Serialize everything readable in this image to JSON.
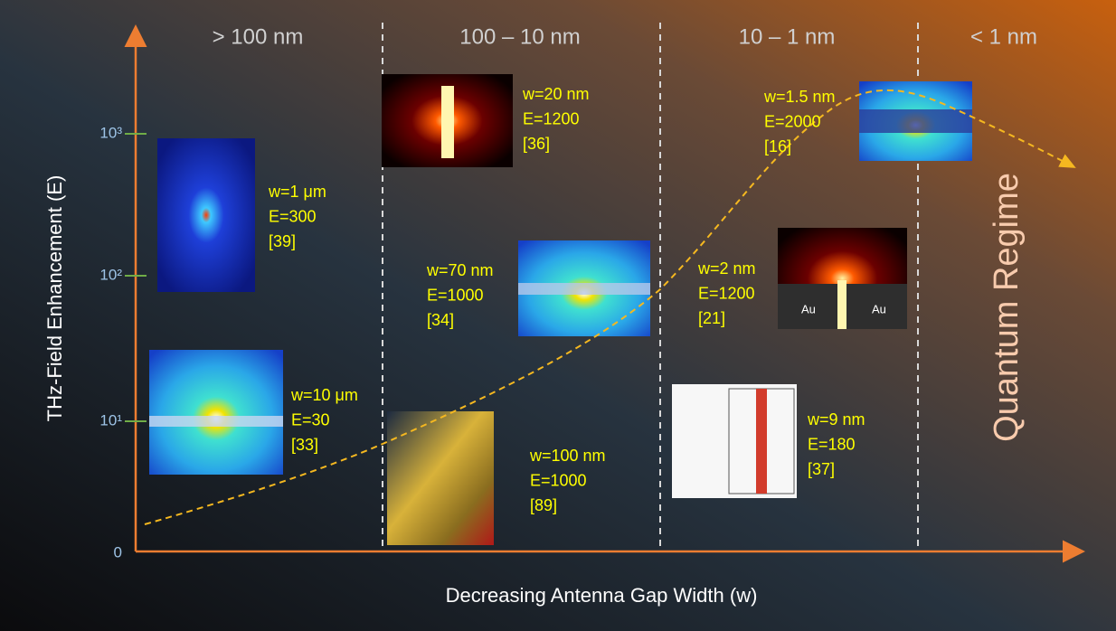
{
  "axes": {
    "y_label": "THz-Field Enhancement (E)",
    "x_label": "Decreasing Antenna Gap Width (w)",
    "y_ticks": [
      "0",
      "10¹",
      "10²",
      "10³"
    ]
  },
  "regions": [
    "> 100 nm",
    "100 – 10 nm",
    "10 – 1 nm",
    "< 1 nm"
  ],
  "side_label": "Quantum Regime",
  "examples": [
    {
      "lines": [
        "w=1 μm",
        "E=300",
        "[39]"
      ]
    },
    {
      "lines": [
        "w=10 μm",
        "E=30",
        "[33]"
      ]
    },
    {
      "lines": [
        "w=20 nm",
        "E=1200",
        "[36]"
      ]
    },
    {
      "lines": [
        "w=70 nm",
        "E=1000",
        "[34]"
      ]
    },
    {
      "lines": [
        "w=100 nm",
        "E=1000",
        "[89]"
      ]
    },
    {
      "lines": [
        "w=1.5 nm",
        "E=2000",
        "[16]"
      ]
    },
    {
      "lines": [
        "w=2 nm",
        "E=1200",
        "[21]"
      ]
    },
    {
      "lines": [
        "w=9 nm",
        "E=180",
        "[37]"
      ]
    }
  ],
  "inset_labels": [
    "Au",
    "Au"
  ]
}
